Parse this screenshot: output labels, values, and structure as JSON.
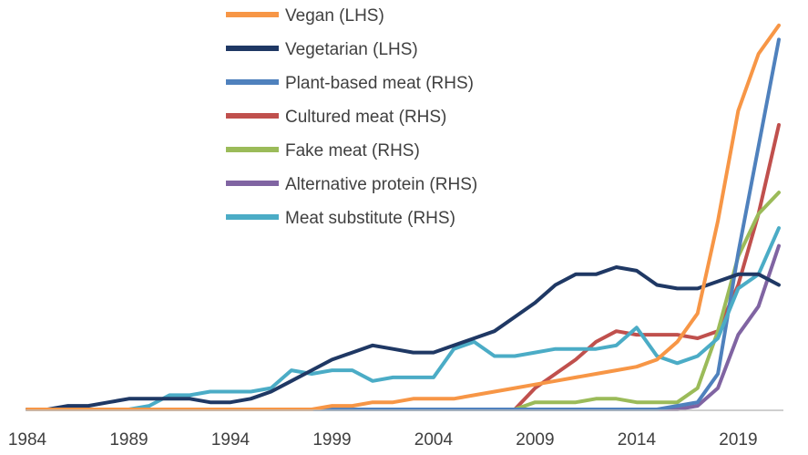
{
  "chart_data": {
    "type": "line",
    "title": "",
    "xlabel": "",
    "ylabel": "",
    "x": [
      1984,
      1985,
      1986,
      1987,
      1988,
      1989,
      1990,
      1991,
      1992,
      1993,
      1994,
      1995,
      1996,
      1997,
      1998,
      1999,
      2000,
      2001,
      2002,
      2003,
      2004,
      2005,
      2006,
      2007,
      2008,
      2009,
      2010,
      2011,
      2012,
      2013,
      2014,
      2015,
      2016,
      2017,
      2018,
      2019,
      2020,
      2021
    ],
    "xticks": [
      1984,
      1989,
      1994,
      1999,
      2004,
      2009,
      2014,
      2019
    ],
    "xlim": [
      1984,
      2021
    ],
    "ylim": [
      0,
      100
    ],
    "grid": false,
    "legend_position": "top-center",
    "series": [
      {
        "name": "Vegan (LHS)",
        "color": "#F79646",
        "values": [
          0,
          0,
          0,
          0,
          0,
          0,
          0,
          0,
          0,
          0,
          0,
          0,
          0,
          0,
          0,
          1,
          1,
          2,
          2,
          3,
          3,
          3,
          4,
          5,
          6,
          7,
          8,
          9,
          10,
          11,
          12,
          14,
          19,
          27,
          53,
          84,
          100,
          108
        ]
      },
      {
        "name": "Vegetarian (LHS)",
        "color": "#1F3864",
        "values": [
          0,
          0,
          1,
          1,
          2,
          3,
          3,
          3,
          3,
          2,
          2,
          3,
          5,
          8,
          11,
          14,
          16,
          18,
          17,
          16,
          16,
          18,
          20,
          22,
          26,
          30,
          35,
          38,
          38,
          40,
          39,
          35,
          34,
          34,
          36,
          38,
          38,
          35
        ]
      },
      {
        "name": "Plant-based meat (RHS)",
        "color": "#4F81BD",
        "values": [
          0,
          0,
          0,
          0,
          0,
          0,
          0,
          0,
          0,
          0,
          0,
          0,
          0,
          0,
          0,
          0,
          0,
          0,
          0,
          0,
          0,
          0,
          0,
          0,
          0,
          0,
          0,
          0,
          0,
          0,
          0,
          0,
          1,
          2,
          10,
          44,
          74,
          104
        ]
      },
      {
        "name": "Cultured meat (RHS)",
        "color": "#C0504D",
        "values": [
          0,
          0,
          0,
          0,
          0,
          0,
          0,
          0,
          0,
          0,
          0,
          0,
          0,
          0,
          0,
          0,
          0,
          0,
          0,
          0,
          0,
          0,
          0,
          0,
          0,
          6,
          10,
          14,
          19,
          22,
          21,
          21,
          21,
          20,
          22,
          35,
          55,
          80
        ]
      },
      {
        "name": "Fake meat (RHS)",
        "color": "#9BBB59",
        "values": [
          0,
          0,
          0,
          0,
          0,
          0,
          0,
          0,
          0,
          0,
          0,
          0,
          0,
          0,
          0,
          0,
          0,
          0,
          0,
          0,
          0,
          0,
          0,
          0,
          0,
          2,
          2,
          2,
          3,
          3,
          2,
          2,
          2,
          6,
          22,
          43,
          55,
          61
        ]
      },
      {
        "name": "Alternative protein (RHS)",
        "color": "#8064A2",
        "values": [
          0,
          0,
          0,
          0,
          0,
          0,
          0,
          0,
          0,
          0,
          0,
          0,
          0,
          0,
          0,
          0,
          0,
          0,
          0,
          0,
          0,
          0,
          0,
          0,
          0,
          0,
          0,
          0,
          0,
          0,
          0,
          0,
          0,
          1,
          6,
          21,
          29,
          46
        ]
      },
      {
        "name": "Meat substitute (RHS)",
        "color": "#4BACC6",
        "values": [
          0,
          0,
          0,
          0,
          0,
          0,
          1,
          4,
          4,
          5,
          5,
          5,
          6,
          11,
          10,
          11,
          11,
          8,
          9,
          9,
          9,
          17,
          19,
          15,
          15,
          16,
          17,
          17,
          17,
          18,
          23,
          15,
          13,
          15,
          20,
          34,
          38,
          51
        ]
      }
    ]
  }
}
